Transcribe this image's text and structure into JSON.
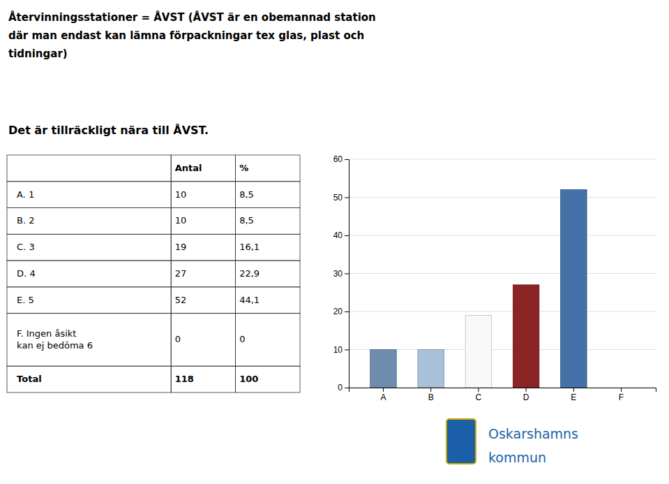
{
  "chart_data": {
    "type": "bar",
    "title": "Återvinningsstationer = ÅVST (ÅVST är en obemannad station\ndär man endast kan lämna förpackningar tex glas, plast och\ntidningar)",
    "subtitle": "Det är tillräckligt nära till ÅVST.",
    "categories": [
      "A",
      "B",
      "C",
      "D",
      "E",
      "F"
    ],
    "values": [
      10,
      10,
      19,
      27,
      52,
      0
    ],
    "colors": [
      "#6e8cae",
      "#a8c0d8",
      "#f8f8f8",
      "#8b2525",
      "#4472a8",
      "#e0e0e8"
    ],
    "ylim": [
      0,
      60
    ],
    "yticks": [
      0,
      10,
      20,
      30,
      40,
      50,
      60
    ],
    "grid": true,
    "table": {
      "headers": [
        "",
        "Antal",
        "%"
      ],
      "rows": [
        [
          "A. 1",
          "10",
          "8,5"
        ],
        [
          "B. 2",
          "10",
          "8,5"
        ],
        [
          "C. 3",
          "19",
          "16,1"
        ],
        [
          "D. 4",
          "27",
          "22,9"
        ],
        [
          "E. 5",
          "52",
          "44,1"
        ],
        [
          "F. Ingen åsikt\nkan ej bedöma 6",
          "0",
          "0"
        ],
        [
          "Total",
          "118",
          "100"
        ]
      ]
    },
    "annotations": [
      "Oskarshamns",
      "kommun"
    ]
  }
}
